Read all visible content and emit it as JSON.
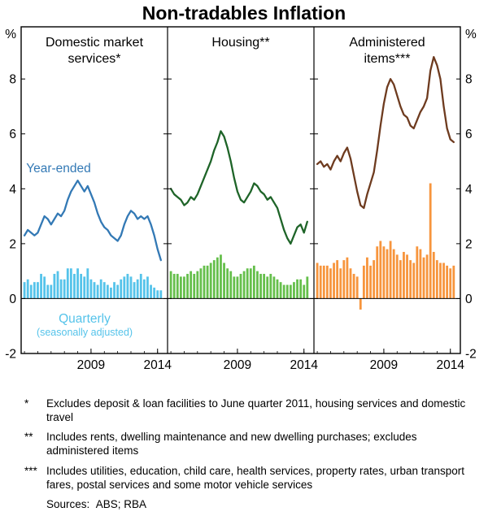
{
  "chart_data": {
    "type": "bar-line-combo",
    "title": "Non-tradables Inflation",
    "unit": "%",
    "ylim": [
      -2,
      9.9
    ],
    "yticks": [
      -2,
      0,
      2,
      4,
      6,
      8
    ],
    "xlim": [
      2003.75,
      2014.75
    ],
    "xticks": [
      2009,
      2014
    ],
    "x_start": 2004.0,
    "x_step": 0.25,
    "legend_position": "in-panel annotations",
    "grid": false,
    "panels": [
      {
        "title": "Domestic market services*",
        "title_lines": [
          "Domestic market",
          "services*"
        ],
        "line_label": "Year-ended",
        "bar_label": "Quarterly",
        "bar_sublabel": "(seasonally adjusted)",
        "line_color": "#3379b5",
        "bar_color": "#55c3ea",
        "year_ended": [
          2.3,
          2.5,
          2.4,
          2.3,
          2.4,
          2.7,
          3.0,
          2.9,
          2.7,
          2.9,
          3.1,
          3.0,
          3.2,
          3.6,
          3.9,
          4.1,
          4.3,
          4.1,
          3.9,
          4.1,
          3.8,
          3.5,
          3.1,
          2.8,
          2.6,
          2.5,
          2.3,
          2.2,
          2.1,
          2.3,
          2.7,
          3.0,
          3.2,
          3.1,
          2.9,
          3.0,
          2.9,
          3.0,
          2.7,
          2.3,
          1.8,
          1.4
        ],
        "quarterly": [
          0.6,
          0.7,
          0.5,
          0.6,
          0.6,
          0.9,
          0.8,
          0.5,
          0.5,
          0.9,
          1.0,
          0.7,
          0.7,
          1.1,
          1.1,
          0.9,
          1.1,
          0.9,
          0.8,
          1.1,
          0.7,
          0.6,
          0.5,
          0.7,
          0.6,
          0.5,
          0.4,
          0.6,
          0.5,
          0.7,
          0.8,
          0.9,
          0.8,
          0.6,
          0.7,
          0.9,
          0.7,
          0.8,
          0.5,
          0.4,
          0.3,
          0.3
        ]
      },
      {
        "title": "Housing**",
        "title_lines": [
          "Housing**"
        ],
        "line_color": "#1e6428",
        "bar_color": "#65bf4b",
        "year_ended": [
          4.0,
          3.8,
          3.7,
          3.6,
          3.4,
          3.5,
          3.7,
          3.6,
          3.8,
          4.1,
          4.4,
          4.7,
          5.0,
          5.4,
          5.7,
          6.1,
          5.9,
          5.5,
          5.0,
          4.4,
          3.9,
          3.6,
          3.5,
          3.7,
          3.9,
          4.2,
          4.1,
          3.9,
          3.8,
          3.6,
          3.7,
          3.5,
          3.3,
          2.9,
          2.5,
          2.2,
          2.0,
          2.3,
          2.6,
          2.7,
          2.4,
          2.8
        ],
        "quarterly": [
          1.0,
          0.9,
          0.9,
          0.8,
          0.8,
          0.9,
          1.0,
          0.9,
          1.0,
          1.1,
          1.2,
          1.2,
          1.3,
          1.4,
          1.5,
          1.6,
          1.3,
          1.1,
          1.0,
          0.8,
          0.8,
          0.9,
          1.0,
          1.1,
          1.1,
          1.2,
          1.0,
          0.9,
          0.9,
          0.8,
          0.9,
          0.8,
          0.7,
          0.6,
          0.5,
          0.5,
          0.5,
          0.6,
          0.7,
          0.7,
          0.5,
          0.8
        ]
      },
      {
        "title": "Administered items***",
        "title_lines": [
          "Administered",
          "items***"
        ],
        "line_color": "#6e3b1f",
        "bar_color": "#f7953d",
        "year_ended": [
          4.9,
          5.0,
          4.8,
          4.9,
          4.7,
          5.0,
          5.2,
          5.0,
          5.3,
          5.5,
          5.1,
          4.5,
          3.9,
          3.4,
          3.3,
          3.8,
          4.2,
          4.6,
          5.4,
          6.3,
          7.1,
          7.7,
          8.0,
          7.8,
          7.4,
          7.0,
          6.7,
          6.6,
          6.3,
          6.2,
          6.5,
          6.8,
          7.0,
          7.3,
          8.3,
          8.8,
          8.5,
          8.0,
          7.0,
          6.2,
          5.8,
          5.7
        ],
        "quarterly": [
          1.3,
          1.2,
          1.2,
          1.2,
          1.1,
          1.3,
          1.4,
          1.1,
          1.4,
          1.5,
          1.1,
          0.9,
          0.8,
          -0.4,
          1.2,
          1.5,
          1.2,
          1.4,
          1.9,
          2.1,
          1.9,
          1.8,
          2.1,
          1.8,
          1.6,
          1.4,
          1.7,
          1.6,
          1.4,
          1.3,
          1.9,
          1.8,
          1.5,
          1.6,
          4.2,
          1.7,
          1.4,
          1.3,
          1.3,
          1.2,
          1.1,
          1.2
        ]
      }
    ]
  },
  "footnotes": [
    {
      "marker": "*",
      "text": "Excludes deposit & loan facilities to June quarter 2011, housing services and domestic travel"
    },
    {
      "marker": "**",
      "text": "Includes rents, dwelling maintenance and new dwelling purchases; excludes administered items"
    },
    {
      "marker": "***",
      "text": "Includes utilities, education, child care, health services, property rates, urban transport fares, postal services and some motor vehicle services"
    }
  ],
  "sources": "Sources:  ABS; RBA"
}
